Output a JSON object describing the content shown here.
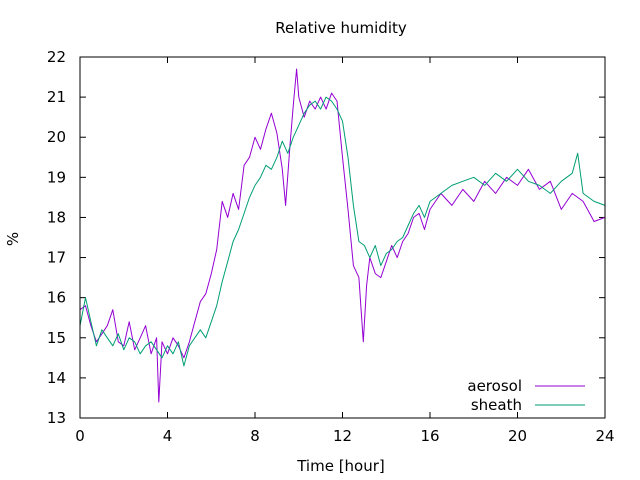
{
  "chart_data": {
    "type": "line",
    "title": "Relative humidity",
    "xlabel": "Time [hour]",
    "ylabel": "%",
    "xlim": [
      0,
      24
    ],
    "ylim": [
      13,
      22
    ],
    "xticks": [
      0,
      4,
      8,
      12,
      16,
      20,
      24
    ],
    "yticks": [
      13,
      14,
      15,
      16,
      17,
      18,
      19,
      20,
      21,
      22
    ],
    "grid": false,
    "legend_position": "bottom-right",
    "series": [
      {
        "name": "aerosol",
        "color": "#9400d3",
        "x": [
          0.0,
          0.25,
          0.5,
          0.75,
          1.0,
          1.25,
          1.5,
          1.75,
          2.0,
          2.25,
          2.5,
          2.75,
          3.0,
          3.25,
          3.5,
          3.6,
          3.75,
          4.0,
          4.25,
          4.5,
          4.75,
          5.0,
          5.25,
          5.5,
          5.75,
          6.0,
          6.25,
          6.5,
          6.75,
          7.0,
          7.25,
          7.5,
          7.75,
          8.0,
          8.25,
          8.5,
          8.75,
          9.0,
          9.25,
          9.4,
          9.6,
          9.75,
          9.9,
          10.0,
          10.25,
          10.5,
          10.75,
          11.0,
          11.25,
          11.5,
          11.75,
          12.0,
          12.25,
          12.5,
          12.75,
          12.95,
          13.1,
          13.25,
          13.5,
          13.75,
          14.0,
          14.25,
          14.5,
          14.75,
          15.0,
          15.25,
          15.5,
          15.75,
          16.0,
          16.5,
          17.0,
          17.5,
          18.0,
          18.5,
          19.0,
          19.5,
          20.0,
          20.5,
          21.0,
          21.5,
          22.0,
          22.5,
          23.0,
          23.5,
          24.0
        ],
        "y": [
          15.7,
          15.8,
          15.3,
          14.9,
          15.1,
          15.3,
          15.7,
          14.9,
          14.8,
          15.4,
          14.7,
          15.0,
          15.3,
          14.6,
          15.0,
          13.4,
          14.9,
          14.6,
          15.0,
          14.8,
          14.5,
          14.9,
          15.4,
          15.9,
          16.1,
          16.6,
          17.2,
          18.4,
          18.0,
          18.6,
          18.2,
          19.3,
          19.5,
          20.0,
          19.7,
          20.2,
          20.6,
          20.1,
          19.2,
          18.3,
          19.8,
          20.8,
          21.7,
          21.0,
          20.5,
          20.9,
          20.7,
          21.0,
          20.7,
          21.1,
          20.9,
          19.5,
          18.2,
          16.8,
          16.5,
          14.9,
          16.3,
          17.0,
          16.6,
          16.5,
          16.9,
          17.3,
          17.0,
          17.4,
          17.6,
          18.0,
          18.1,
          17.7,
          18.2,
          18.6,
          18.3,
          18.7,
          18.4,
          18.9,
          18.6,
          19.0,
          18.8,
          19.2,
          18.7,
          18.9,
          18.2,
          18.6,
          18.4,
          17.9,
          18.0
        ]
      },
      {
        "name": "sheath",
        "color": "#009e73",
        "x": [
          0.0,
          0.25,
          0.5,
          0.75,
          1.0,
          1.25,
          1.5,
          1.75,
          2.0,
          2.25,
          2.5,
          2.75,
          3.0,
          3.25,
          3.5,
          3.75,
          4.0,
          4.25,
          4.5,
          4.75,
          5.0,
          5.25,
          5.5,
          5.75,
          6.0,
          6.25,
          6.5,
          6.75,
          7.0,
          7.25,
          7.5,
          7.75,
          8.0,
          8.25,
          8.5,
          8.75,
          9.0,
          9.25,
          9.5,
          9.75,
          10.0,
          10.25,
          10.5,
          10.75,
          11.0,
          11.25,
          11.5,
          11.75,
          12.0,
          12.25,
          12.5,
          12.75,
          13.0,
          13.25,
          13.5,
          13.75,
          14.0,
          14.25,
          14.5,
          14.75,
          15.0,
          15.25,
          15.5,
          15.75,
          16.0,
          16.5,
          17.0,
          17.5,
          18.0,
          18.5,
          19.0,
          19.5,
          20.0,
          20.5,
          21.0,
          21.5,
          22.0,
          22.5,
          22.75,
          23.0,
          23.5,
          24.0
        ],
        "y": [
          15.3,
          16.0,
          15.4,
          14.8,
          15.2,
          15.0,
          14.8,
          15.1,
          14.7,
          15.0,
          14.9,
          14.6,
          14.8,
          14.9,
          14.7,
          14.5,
          14.8,
          14.6,
          14.9,
          14.3,
          14.8,
          15.0,
          15.2,
          15.0,
          15.4,
          15.8,
          16.4,
          16.9,
          17.4,
          17.7,
          18.1,
          18.5,
          18.8,
          19.0,
          19.3,
          19.2,
          19.5,
          19.9,
          19.6,
          20.0,
          20.3,
          20.6,
          20.8,
          20.9,
          20.7,
          21.0,
          20.9,
          20.7,
          20.4,
          19.5,
          18.3,
          17.4,
          17.3,
          17.0,
          17.3,
          16.8,
          17.1,
          17.2,
          17.4,
          17.5,
          17.8,
          18.1,
          18.3,
          18.0,
          18.4,
          18.6,
          18.8,
          18.9,
          19.0,
          18.8,
          19.1,
          18.9,
          19.2,
          18.9,
          18.8,
          18.6,
          18.9,
          19.1,
          19.6,
          18.6,
          18.4,
          18.3
        ]
      }
    ]
  }
}
